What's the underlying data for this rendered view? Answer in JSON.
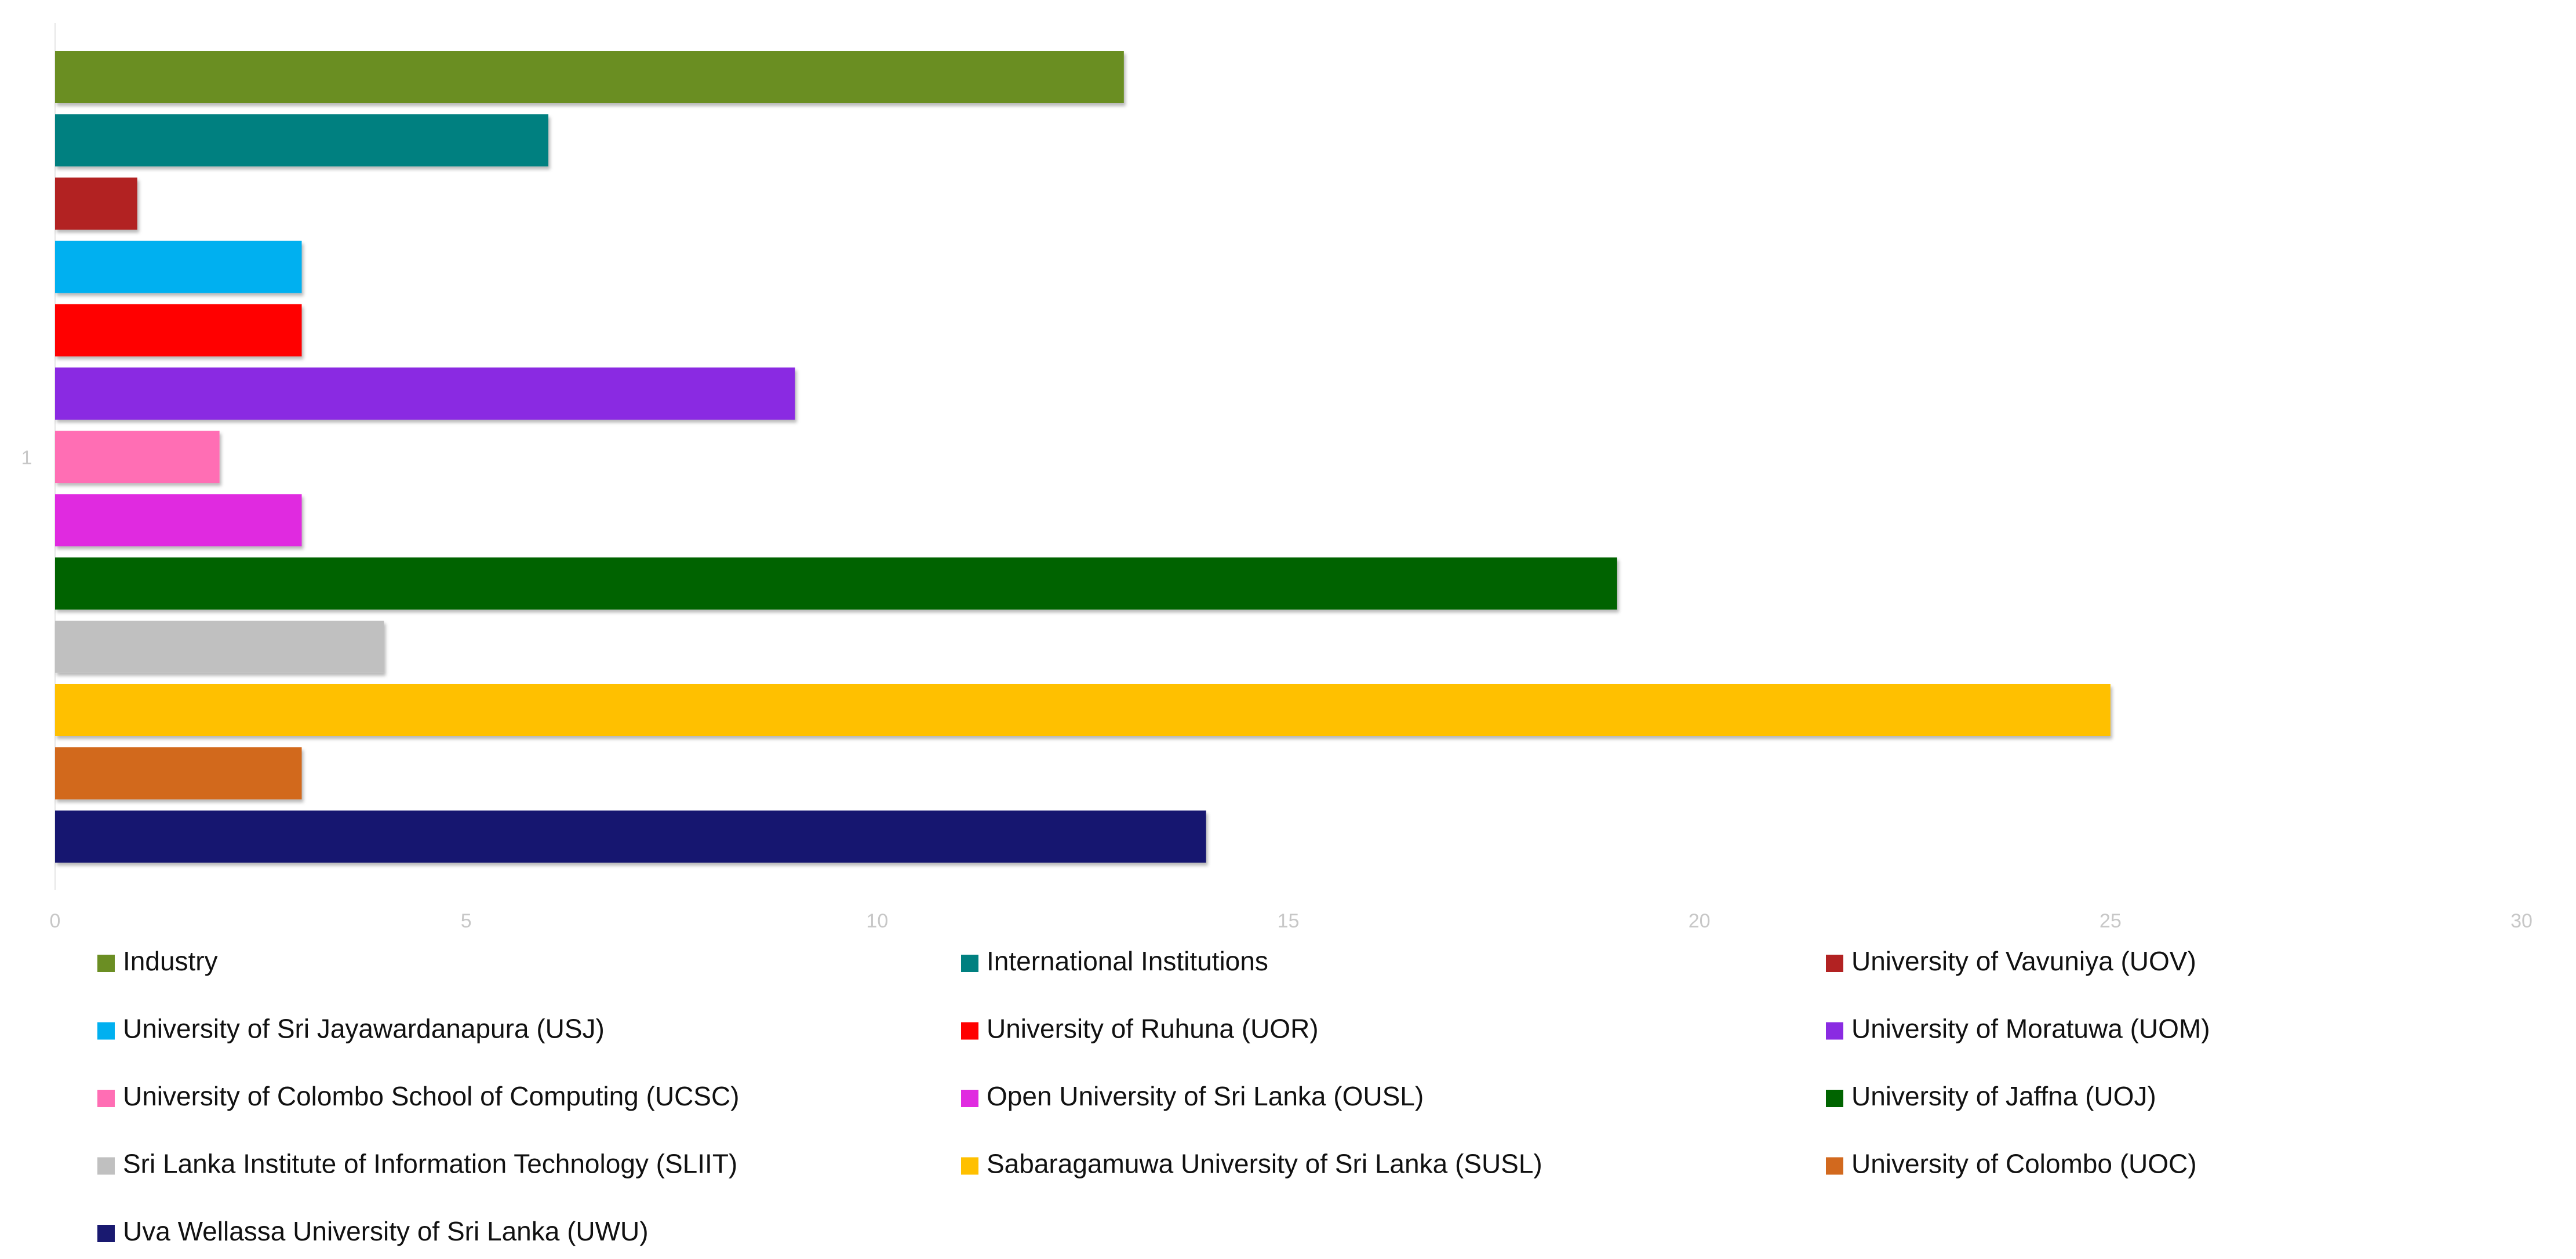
{
  "chart_data": {
    "type": "bar",
    "orientation": "horizontal",
    "categories": [
      "1"
    ],
    "series": [
      {
        "name": "Industry",
        "value": 13,
        "color": "#6b8e23"
      },
      {
        "name": "International Institutions",
        "value": 6,
        "color": "#008080"
      },
      {
        "name": "University of Vavuniya (UOV)",
        "value": 1,
        "color": "#b22222"
      },
      {
        "name": "University of Sri Jayawardanapura (USJ)",
        "value": 3,
        "color": "#00b0f0"
      },
      {
        "name": "University of Ruhuna (UOR)",
        "value": 3,
        "color": "#ff0000"
      },
      {
        "name": "University of Moratuwa (UOM)",
        "value": 9,
        "color": "#8a2be2"
      },
      {
        "name": "University of Colombo School of Computing (UCSC)",
        "value": 2,
        "color": "#ff6eb4"
      },
      {
        "name": "Open University of Sri Lanka (OUSL)",
        "value": 3,
        "color": "#e02be0"
      },
      {
        "name": "University of Jaffna (UOJ)",
        "value": 19,
        "color": "#006400"
      },
      {
        "name": "Sri Lanka Institute of Information Technology (SLIIT)",
        "value": 4,
        "color": "#c0c0c0"
      },
      {
        "name": "Sabaragamuwa University of Sri Lanka (SUSL)",
        "value": 25,
        "color": "#ffc000"
      },
      {
        "name": "University of Colombo (UOC)",
        "value": 3,
        "color": "#d2691e"
      },
      {
        "name": "Uva Wellassa University of Sri Lanka (UWU)",
        "value": 14,
        "color": "#191970"
      }
    ],
    "xlim": [
      0,
      30
    ],
    "xticks": [
      "0",
      "5",
      "10",
      "15",
      "20",
      "25",
      "30"
    ],
    "grid": false,
    "legend": {
      "placement": "bottom",
      "columns": 3
    },
    "title": "",
    "xlabel": "",
    "ylabel": ""
  }
}
